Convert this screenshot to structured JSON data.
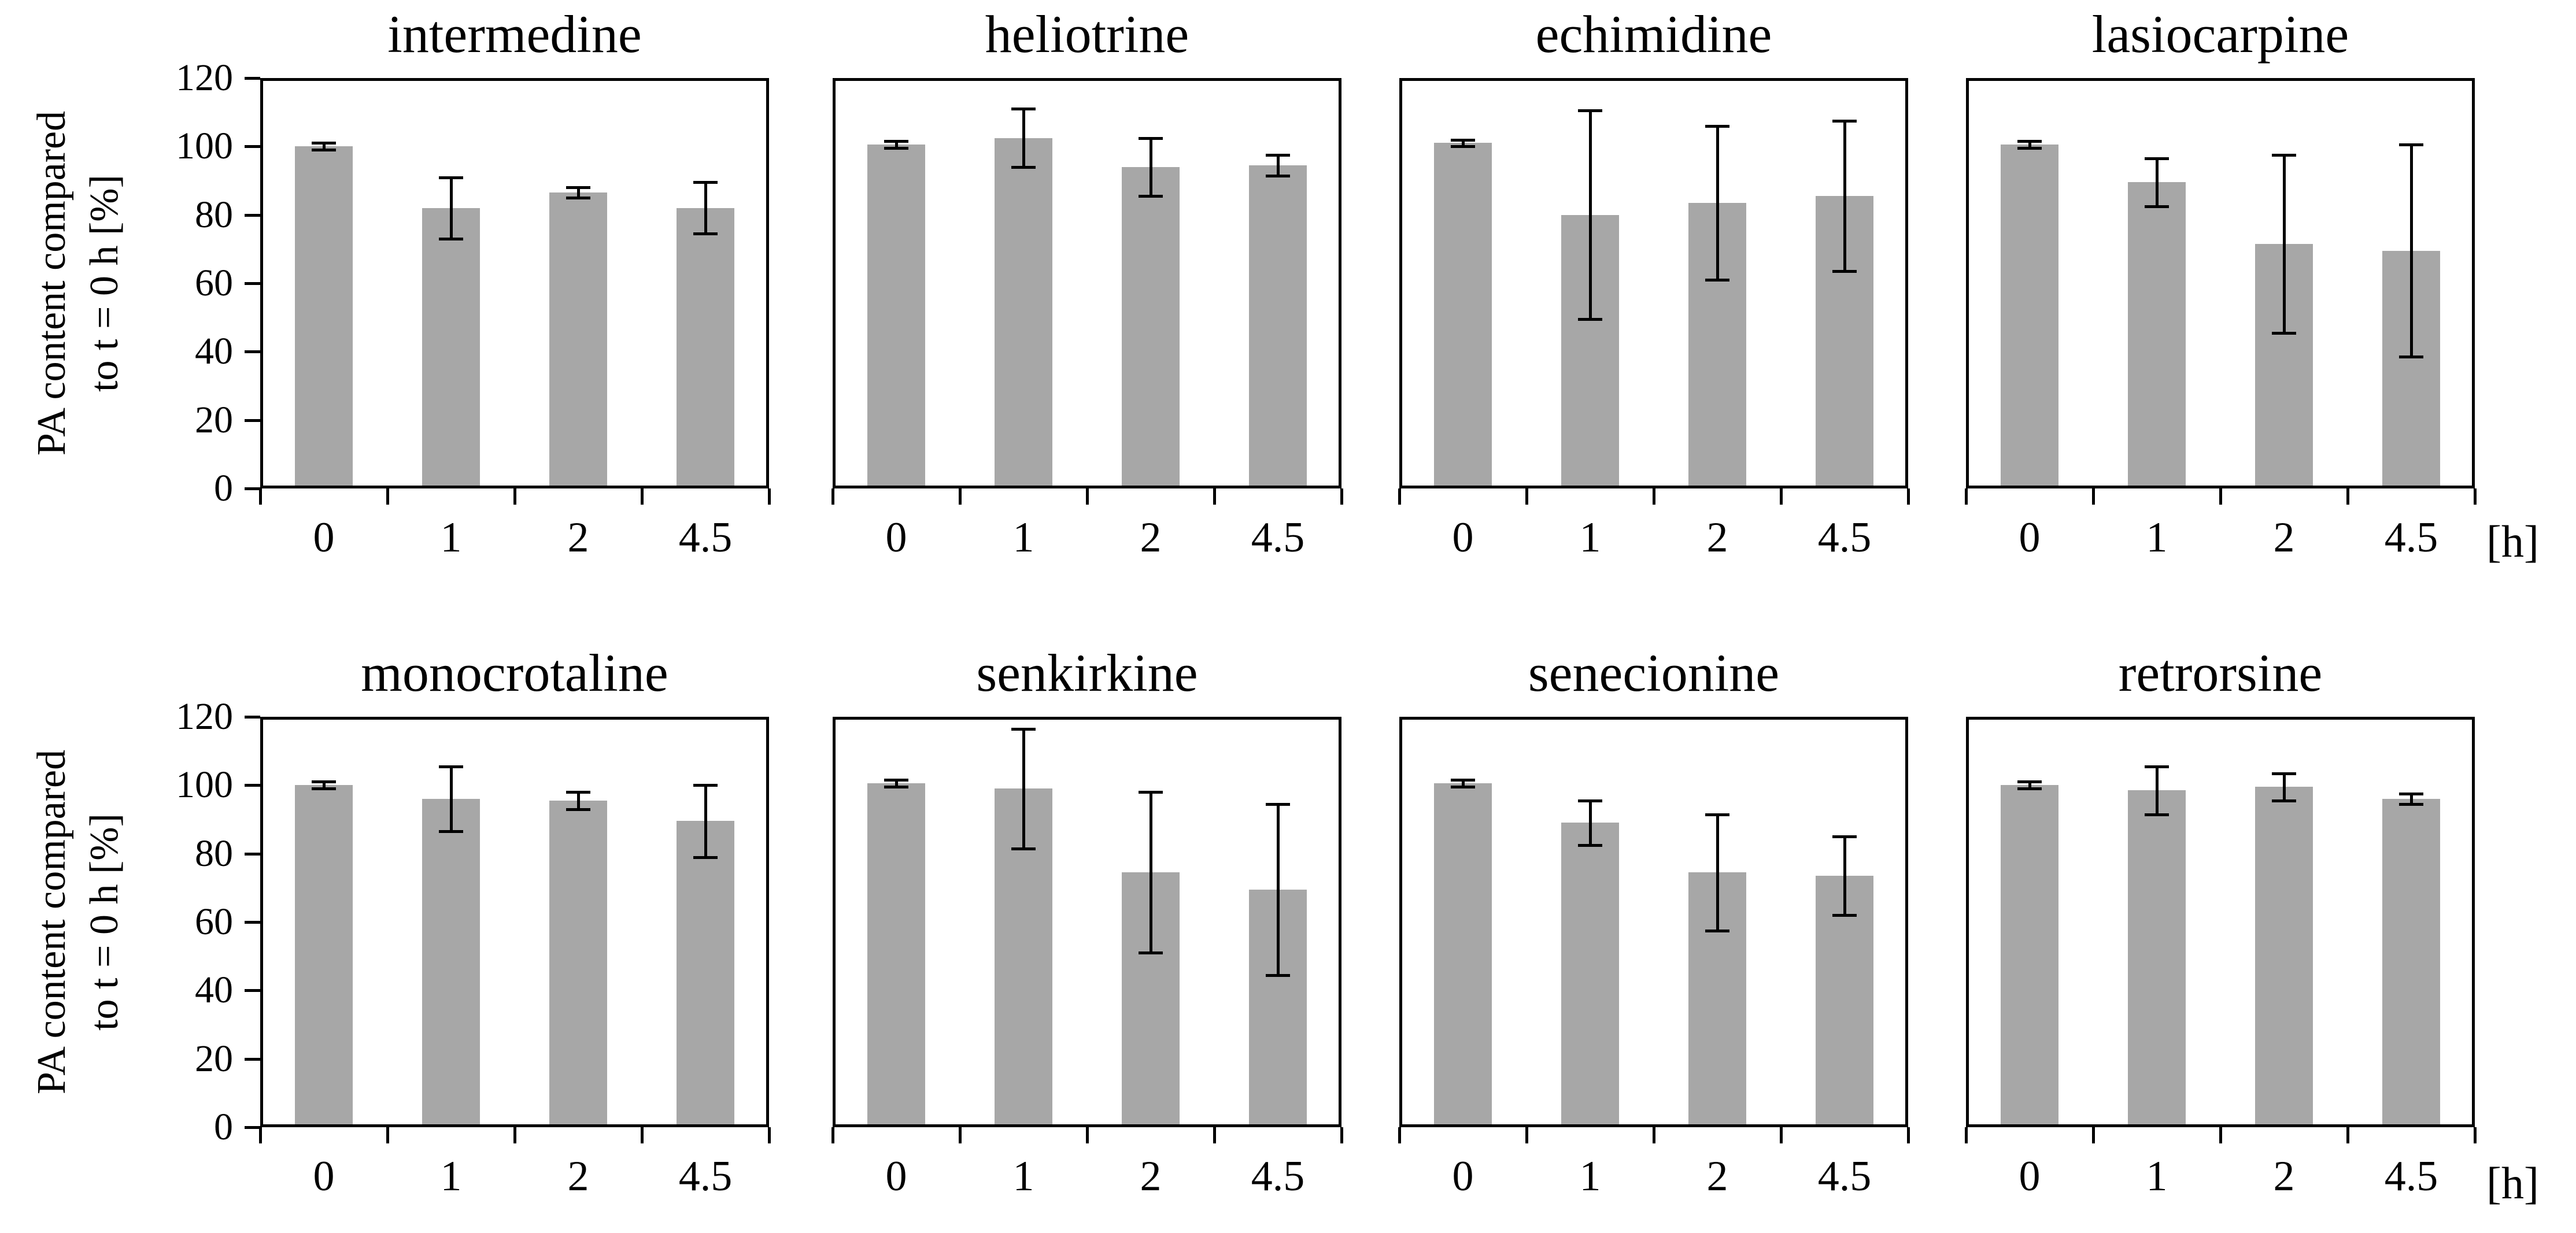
{
  "figure": {
    "y_axis_label_line1": "PA content compared",
    "y_axis_label_line2": "to t = 0 h [%]",
    "x_unit_label": "[h]",
    "background_color": "#ffffff",
    "bar_color": "#a7a7a7",
    "axis_color": "#000000",
    "error_bar_color": "#000000"
  },
  "chart_data": [
    {
      "type": "bar",
      "title": "intermedine",
      "categories": [
        "0",
        "1",
        "2",
        "4.5"
      ],
      "values": [
        100,
        82,
        86.5,
        82
      ],
      "errors": [
        1,
        9,
        1.5,
        7.5
      ],
      "ylim": [
        0,
        120
      ],
      "yticks": [
        0,
        20,
        40,
        60,
        80,
        100,
        120
      ],
      "xlabel": "[h]",
      "ylabel": "PA content compared to t = 0 h [%]",
      "grid": false,
      "legend": "none"
    },
    {
      "type": "bar",
      "title": "heliotrine",
      "categories": [
        "0",
        "1",
        "2",
        "4.5"
      ],
      "values": [
        100.5,
        102.5,
        94,
        94.5
      ],
      "errors": [
        1,
        8.5,
        8.5,
        3
      ],
      "ylim": [
        0,
        120
      ],
      "yticks": [
        0,
        20,
        40,
        60,
        80,
        100,
        120
      ],
      "xlabel": "[h]",
      "ylabel": "PA content compared to t = 0 h [%]",
      "grid": false,
      "legend": "none"
    },
    {
      "type": "bar",
      "title": "echimidine",
      "categories": [
        "0",
        "1",
        "2",
        "4.5"
      ],
      "values": [
        101,
        80,
        83.5,
        85.5
      ],
      "errors": [
        1,
        30.5,
        22.5,
        22
      ],
      "ylim": [
        0,
        120
      ],
      "yticks": [
        0,
        20,
        40,
        60,
        80,
        100,
        120
      ],
      "xlabel": "[h]",
      "ylabel": "PA content compared to t = 0 h [%]",
      "grid": false,
      "legend": "none"
    },
    {
      "type": "bar",
      "title": "lasiocarpine",
      "categories": [
        "0",
        "1",
        "2",
        "4.5"
      ],
      "values": [
        100.5,
        89.5,
        71.5,
        69.5
      ],
      "errors": [
        1,
        7,
        26,
        31
      ],
      "ylim": [
        0,
        120
      ],
      "yticks": [
        0,
        20,
        40,
        60,
        80,
        100,
        120
      ],
      "xlabel": "[h]",
      "ylabel": "PA content compared to t = 0 h [%]",
      "grid": false,
      "legend": "none"
    },
    {
      "type": "bar",
      "title": "monocrotaline",
      "categories": [
        "0",
        "1",
        "2",
        "4.5"
      ],
      "values": [
        100,
        96,
        95.5,
        89.5
      ],
      "errors": [
        1,
        9.5,
        2.5,
        10.5
      ],
      "ylim": [
        0,
        120
      ],
      "yticks": [
        0,
        20,
        40,
        60,
        80,
        100,
        120
      ],
      "xlabel": "[h]",
      "ylabel": "PA content compared to t = 0 h [%]",
      "grid": false,
      "legend": "none"
    },
    {
      "type": "bar",
      "title": "senkirkine",
      "categories": [
        "0",
        "1",
        "2",
        "4.5"
      ],
      "values": [
        100.5,
        99,
        74.5,
        69.5
      ],
      "errors": [
        1,
        17.5,
        23.5,
        25
      ],
      "ylim": [
        0,
        120
      ],
      "yticks": [
        0,
        20,
        40,
        60,
        80,
        100,
        120
      ],
      "xlabel": "[h]",
      "ylabel": "PA content compared to t = 0 h [%]",
      "grid": false,
      "legend": "none"
    },
    {
      "type": "bar",
      "title": "senecionine",
      "categories": [
        "0",
        "1",
        "2",
        "4.5"
      ],
      "values": [
        100.5,
        89,
        74.5,
        73.5
      ],
      "errors": [
        1,
        6.5,
        17,
        11.5
      ],
      "ylim": [
        0,
        120
      ],
      "yticks": [
        0,
        20,
        40,
        60,
        80,
        100,
        120
      ],
      "xlabel": "[h]",
      "ylabel": "PA content compared to t = 0 h [%]",
      "grid": false,
      "legend": "none"
    },
    {
      "type": "bar",
      "title": "retrorsine",
      "categories": [
        "0",
        "1",
        "2",
        "4.5"
      ],
      "values": [
        100,
        98.5,
        99.5,
        96
      ],
      "errors": [
        1,
        7,
        4,
        1.5
      ],
      "ylim": [
        0,
        120
      ],
      "yticks": [
        0,
        20,
        40,
        60,
        80,
        100,
        120
      ],
      "xlabel": "[h]",
      "ylabel": "PA content compared to t = 0 h [%]",
      "grid": false,
      "legend": "none"
    }
  ]
}
